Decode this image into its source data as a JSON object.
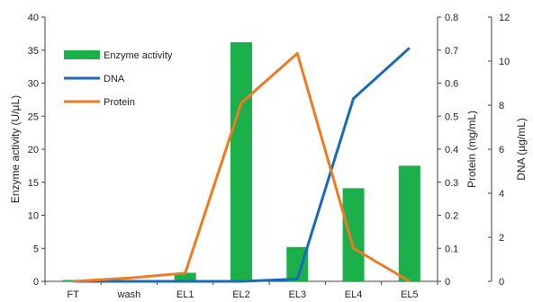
{
  "chart_data": {
    "type": "bar",
    "categories": [
      "FT",
      "wash",
      "EL1",
      "EL2",
      "EL3",
      "EL4",
      "EL5"
    ],
    "series": [
      {
        "name": "Enzyme activity",
        "type": "bar",
        "axis": "left",
        "color": "#1cb04b",
        "values": [
          0.2,
          0,
          1.3,
          36.2,
          5.2,
          14.1,
          17.5
        ]
      },
      {
        "name": "DNA",
        "type": "line",
        "axis": "far-right",
        "color": "#1a6ab8",
        "values": [
          0,
          0,
          0,
          0,
          0.1,
          8.3,
          10.6
        ]
      },
      {
        "name": "Protein",
        "type": "line",
        "axis": "right",
        "color": "#ef7a22",
        "values": [
          0,
          0.01,
          0.025,
          0.54,
          0.69,
          0.1,
          0
        ]
      }
    ],
    "ylabel_left": "Enzyme activity (U/µL)",
    "ylabel_right": "Protein (mg/mL)",
    "ylabel_far_right": "DNA (µg/mL)",
    "ylim_left": [
      0,
      40
    ],
    "ylim_right": [
      0,
      0.8
    ],
    "ylim_far_right": [
      0,
      12
    ],
    "ticks_left": [
      "0",
      "5",
      "10",
      "15",
      "20",
      "25",
      "30",
      "35",
      "40"
    ],
    "ticks_right": [
      "0",
      "0.1",
      "0.2",
      "0.3",
      "0.4",
      "0.5",
      "0.6",
      "0.7",
      "0.8"
    ],
    "ticks_far_right": [
      "0",
      "2",
      "4",
      "6",
      "8",
      "10",
      "12"
    ],
    "legend_position": "top-left",
    "grid": false
  }
}
